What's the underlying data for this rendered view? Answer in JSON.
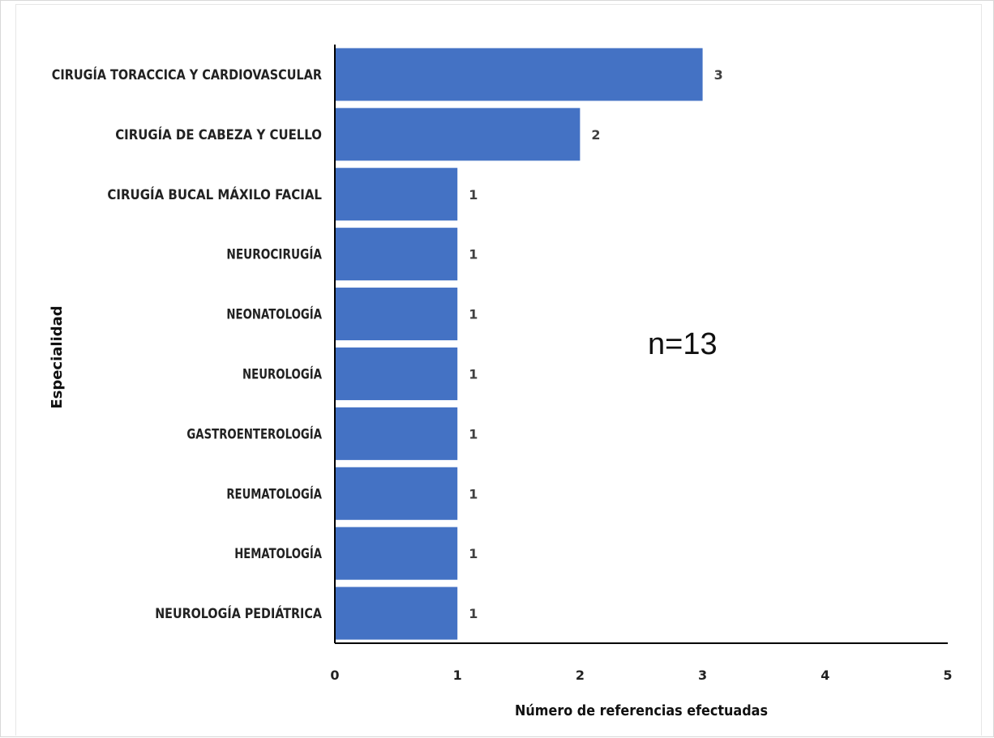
{
  "chart_data": {
    "type": "bar",
    "orientation": "horizontal",
    "categories": [
      "CIRUGÍA TORACCICA Y CARDIOVASCULAR",
      "CIRUGÍA DE CABEZA Y CUELLO",
      "CIRUGÍA BUCAL MÁXILO FACIAL",
      "NEUROCIRUGÍA",
      "NEONATOLOGÍA",
      "NEUROLOGÍA",
      "GASTROENTEROLOGÍA",
      "REUMATOLOGÍA",
      "HEMATOLOGÍA",
      "NEUROLOGÍA PEDIÁTRICA"
    ],
    "values": [
      3,
      2,
      1,
      1,
      1,
      1,
      1,
      1,
      1,
      1
    ],
    "data_labels": [
      "3",
      "2",
      "1",
      "1",
      "1",
      "1",
      "1",
      "1",
      "1",
      "1"
    ],
    "xlabel": "Número de referencias efectuadas",
    "ylabel": "Especialidad",
    "xlim": [
      0,
      5
    ],
    "xticks": [
      "0",
      "1",
      "2",
      "3",
      "4",
      "5"
    ],
    "annotation": "n=13",
    "grid": false,
    "bar_color": "#4472C4"
  }
}
